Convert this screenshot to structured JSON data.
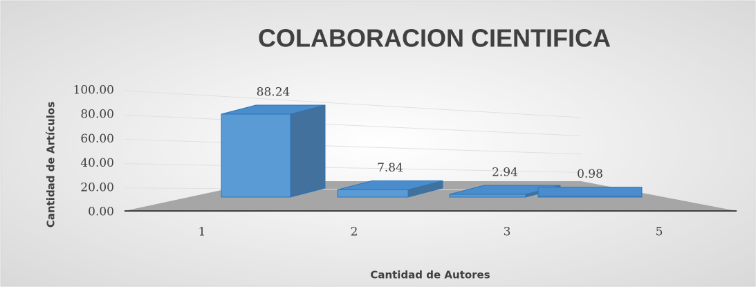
{
  "chart_data": {
    "type": "bar3d",
    "title": "COLABORACION CIENTIFICA",
    "x_label": "Cantidad de Autores",
    "y_label": "Cantidad de Artículos",
    "categories": [
      "1",
      "2",
      "3",
      "5"
    ],
    "values": [
      88.24,
      7.84,
      2.94,
      0.98
    ],
    "color": "#5b9bd5",
    "ylim": [
      0,
      100
    ],
    "yticks": [
      {
        "value": 0,
        "label": "0.00"
      },
      {
        "value": 20,
        "label": "20.00"
      },
      {
        "value": 40,
        "label": "40.00"
      },
      {
        "value": 60,
        "label": "60.00"
      },
      {
        "value": 80,
        "label": "80.00"
      },
      {
        "value": 100,
        "label": "100.00"
      }
    ],
    "grid": true
  }
}
